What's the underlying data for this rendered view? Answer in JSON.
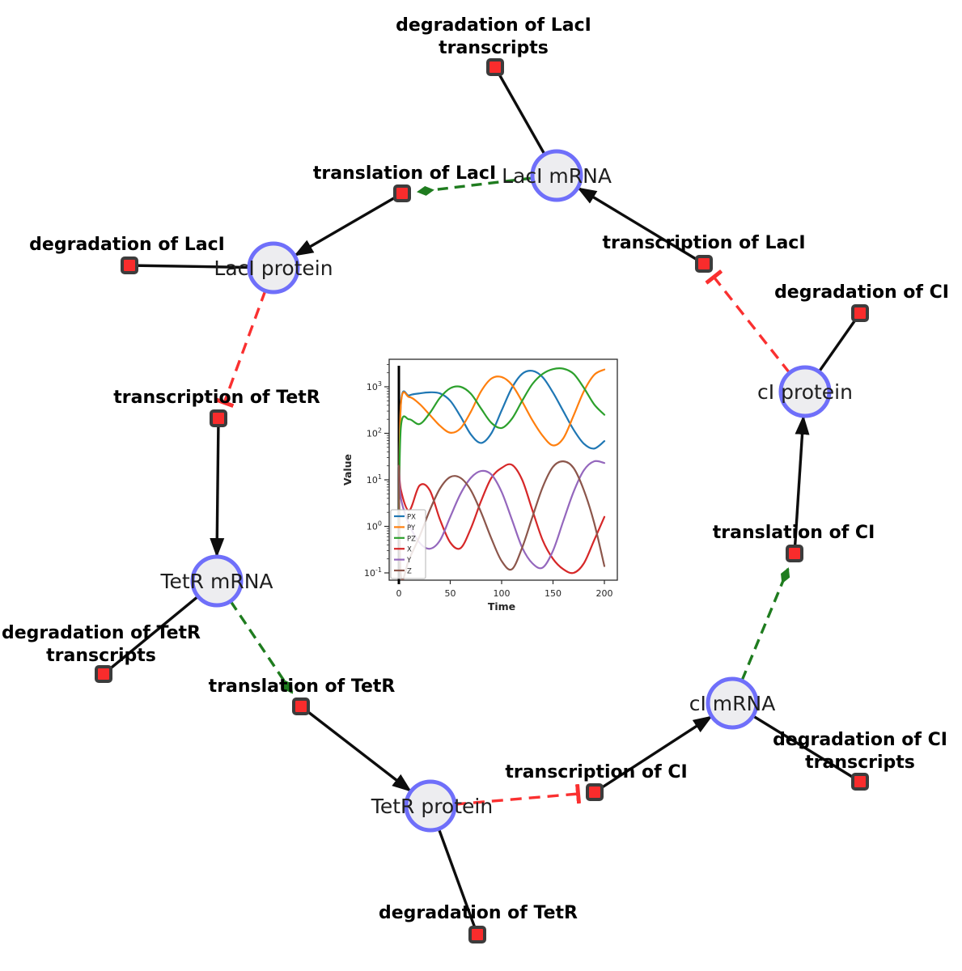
{
  "network": {
    "colors": {
      "species_fill": "#ededf0",
      "species_stroke": "#6f6ffa",
      "reaction_fill": "#f92c2c",
      "reaction_stroke": "#3c3c3c",
      "edge": "#0d0d0d",
      "modifier_edge": "#1f7c1f",
      "inhibition_edge": "#fa3030"
    },
    "species": [
      {
        "label": "LacI mRNA"
      },
      {
        "label": "LacI protein"
      },
      {
        "label": "cI protein"
      },
      {
        "label": "TetR mRNA"
      },
      {
        "label": "cI mRNA"
      },
      {
        "label": "TetR protein"
      }
    ],
    "reactions": [
      {
        "lines": [
          "degradation of LacI",
          "transcripts"
        ]
      },
      {
        "lines": [
          "translation of LacI"
        ]
      },
      {
        "lines": [
          "degradation of LacI"
        ]
      },
      {
        "lines": [
          "transcription of LacI"
        ]
      },
      {
        "lines": [
          "degradation of CI"
        ]
      },
      {
        "lines": [
          "transcription of TetR"
        ]
      },
      {
        "lines": [
          "translation of CI"
        ]
      },
      {
        "lines": [
          "degradation of TetR",
          "transcripts"
        ]
      },
      {
        "lines": [
          "translation of TetR"
        ]
      },
      {
        "lines": [
          "transcription of CI"
        ]
      },
      {
        "lines": [
          "degradation of CI",
          "transcripts"
        ]
      },
      {
        "lines": [
          "degradation of TetR"
        ]
      }
    ]
  },
  "chart_data": {
    "type": "line",
    "title": "",
    "xlabel": "Time",
    "ylabel": "Value",
    "y_scale": "log",
    "xlim": [
      0,
      200
    ],
    "ylim_exponents": [
      -1,
      3
    ],
    "x_ticks": [
      0,
      50,
      100,
      150,
      200
    ],
    "y_tick_exponents": [
      -1,
      0,
      1,
      2,
      3
    ],
    "legend_position": "lower left",
    "t0_marker": 0,
    "x": [
      0,
      2,
      10,
      20,
      30,
      40,
      50,
      60,
      70,
      80,
      90,
      100,
      110,
      120,
      130,
      140,
      150,
      160,
      170,
      180,
      190,
      200
    ],
    "series": [
      {
        "name": "PX",
        "color": "#1f77b4",
        "values": [
          1,
          450,
          650,
          720,
          760,
          720,
          500,
          230,
          95,
          62,
          100,
          310,
          950,
          1900,
          2200,
          1600,
          750,
          300,
          120,
          60,
          47,
          68
        ]
      },
      {
        "name": "PY",
        "color": "#ff7f0e",
        "values": [
          1,
          430,
          600,
          430,
          250,
          145,
          103,
          128,
          290,
          800,
          1500,
          1620,
          1100,
          480,
          190,
          88,
          55,
          78,
          240,
          800,
          1800,
          2350
        ]
      },
      {
        "name": "PZ",
        "color": "#2ca02c",
        "values": [
          1,
          140,
          200,
          158,
          270,
          580,
          930,
          1000,
          710,
          340,
          168,
          130,
          205,
          500,
          1150,
          1900,
          2400,
          2450,
          1900,
          950,
          420,
          250
        ]
      },
      {
        "name": "X",
        "color": "#d62728",
        "values": [
          20,
          6,
          2.2,
          7.5,
          6,
          1.4,
          0.45,
          0.34,
          0.9,
          3.5,
          11,
          18,
          21,
          10,
          2.2,
          0.5,
          0.2,
          0.12,
          0.1,
          0.16,
          0.5,
          1.6
        ]
      },
      {
        "name": "Y",
        "color": "#9467bd",
        "values": [
          20,
          4,
          1.1,
          0.45,
          0.33,
          0.5,
          1.6,
          5,
          11,
          15.5,
          13,
          5.5,
          1.4,
          0.35,
          0.16,
          0.13,
          0.3,
          1.3,
          5.5,
          16,
          25,
          23
        ]
      },
      {
        "name": "Z",
        "color": "#8c564b",
        "values": [
          20,
          0.09,
          0.2,
          0.6,
          2.2,
          6.5,
          11.5,
          11,
          6,
          2,
          0.55,
          0.18,
          0.12,
          0.35,
          1.6,
          7,
          19,
          25,
          18,
          6,
          1.2,
          0.14
        ]
      }
    ]
  }
}
